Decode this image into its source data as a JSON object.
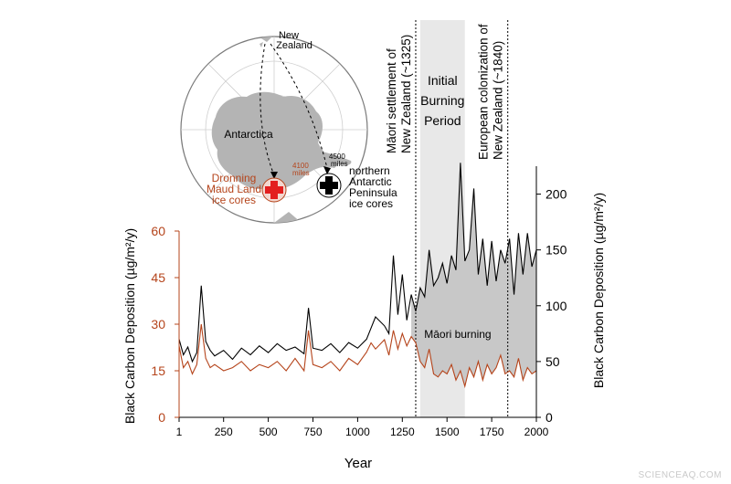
{
  "chart_data": {
    "type": "line",
    "x": {
      "label": "Year",
      "range": [
        1,
        2000
      ],
      "ticks": [
        1,
        250,
        500,
        750,
        1000,
        1250,
        1500,
        1750,
        2000
      ]
    },
    "y_left": {
      "label": "Black Carbon Deposition (µg/m²/y)",
      "range": [
        0,
        60
      ],
      "ticks": [
        0,
        15,
        30,
        45,
        60
      ],
      "color": "#b5441b"
    },
    "y_right": {
      "label": "Black Carbon Deposition (µg/m²/y)",
      "range": [
        0,
        225
      ],
      "ticks": [
        0,
        50,
        100,
        150,
        200
      ],
      "color": "#000000"
    },
    "series": [
      {
        "axis": "right",
        "color": "#000000",
        "x": [
          1,
          25,
          50,
          75,
          100,
          125,
          150,
          175,
          200,
          250,
          300,
          350,
          400,
          450,
          500,
          550,
          600,
          650,
          700,
          725,
          750,
          800,
          850,
          900,
          950,
          1000,
          1050,
          1075,
          1100,
          1150,
          1175,
          1200,
          1225,
          1250,
          1275,
          1300,
          1325,
          1350,
          1375,
          1400,
          1425,
          1450,
          1475,
          1500,
          1525,
          1550,
          1575,
          1600,
          1625,
          1650,
          1675,
          1700,
          1725,
          1750,
          1775,
          1800,
          1825,
          1850,
          1875,
          1900,
          1925,
          1950,
          1975,
          2000
        ],
        "values": [
          70,
          56,
          63,
          50,
          58,
          118,
          68,
          60,
          55,
          60,
          52,
          62,
          56,
          64,
          58,
          66,
          60,
          63,
          57,
          98,
          62,
          60,
          66,
          58,
          67,
          62,
          70,
          80,
          90,
          82,
          75,
          145,
          92,
          128,
          87,
          110,
          95,
          116,
          108,
          150,
          118,
          125,
          138,
          120,
          145,
          132,
          228,
          140,
          150,
          205,
          128,
          160,
          118,
          158,
          122,
          150,
          138,
          160,
          110,
          165,
          128,
          165,
          135,
          150
        ]
      },
      {
        "axis": "left",
        "color": "#b5441b",
        "x": [
          1,
          25,
          50,
          75,
          100,
          125,
          150,
          175,
          200,
          250,
          300,
          350,
          400,
          450,
          500,
          550,
          600,
          650,
          700,
          725,
          750,
          800,
          850,
          900,
          950,
          1000,
          1050,
          1075,
          1100,
          1150,
          1175,
          1200,
          1225,
          1250,
          1275,
          1300,
          1325,
          1350,
          1375,
          1400,
          1425,
          1450,
          1475,
          1500,
          1525,
          1550,
          1575,
          1600,
          1625,
          1650,
          1675,
          1700,
          1725,
          1750,
          1775,
          1800,
          1825,
          1850,
          1875,
          1900,
          1925,
          1950,
          1975,
          2000
        ],
        "values": [
          23,
          16,
          18,
          14,
          17,
          30,
          19,
          16,
          17,
          15,
          16,
          18,
          15,
          17,
          16,
          18,
          15,
          19,
          15,
          28,
          17,
          16,
          18,
          15,
          19,
          17,
          21,
          24,
          22,
          25,
          20,
          28,
          22,
          27,
          23,
          26,
          24,
          18,
          16,
          22,
          14,
          13,
          15,
          14,
          17,
          12,
          15,
          10,
          16,
          13,
          18,
          12,
          17,
          14,
          16,
          20,
          14,
          15,
          13,
          19,
          12,
          16,
          14,
          15
        ]
      }
    ],
    "shaded_region": {
      "x": [
        1350,
        1600
      ],
      "label_lines": [
        "Initial",
        "Burning",
        "Period"
      ]
    },
    "events": [
      {
        "x": 1325,
        "lines": [
          "Māori settlement of",
          "New Zealand (~1325)"
        ]
      },
      {
        "x": 1840,
        "lines": [
          "European colonization of",
          "New Zealand (~1840)"
        ]
      }
    ],
    "fill_label": "Māori burning"
  },
  "map": {
    "new_zealand": [
      "New",
      "Zealand"
    ],
    "antarctica": "Antarctica",
    "dml_distance": [
      "4100",
      "miles"
    ],
    "dml_label": [
      "Dronning",
      "Maud Land",
      "ice cores"
    ],
    "nap_distance": [
      "4500",
      "miles"
    ],
    "nap_label": [
      "northern",
      "Antarctic",
      "Peninsula",
      "ice cores"
    ]
  },
  "credit": "SCIENCEAQ.COM"
}
